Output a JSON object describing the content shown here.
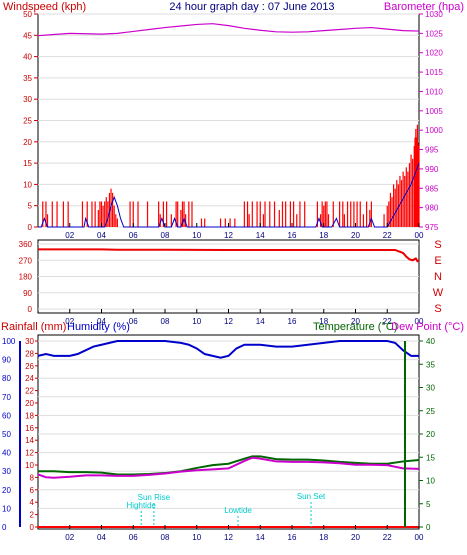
{
  "title": "24 hour graph day : 07 June 2013",
  "colors": {
    "wind": "#ff0000",
    "gust": "#0000cc",
    "baro": "#cc00cc",
    "dir": "#ff0000",
    "rain": "#ff0000",
    "humidity": "#0000cc",
    "temp": "#006600",
    "dew": "#cc00cc",
    "tide": "#00cccc",
    "frame": "#000000",
    "grid": "#dddddd",
    "bg": "#ffffff"
  },
  "chart_data": [
    {
      "type": "bar",
      "name": "wind-baro",
      "left_label": "Windspeed (kph)",
      "right_label": "Barometer (hpa)",
      "x_ticks": [
        "02",
        "04",
        "06",
        "08",
        "10",
        "12",
        "14",
        "16",
        "18",
        "20",
        "22",
        "00"
      ],
      "x_range_h": [
        0,
        24
      ],
      "y_left": {
        "min": 0,
        "max": 50,
        "step": 5
      },
      "y_right": {
        "min": 975,
        "max": 1030,
        "step": 5
      },
      "wind_speed_bars": [
        [
          0.3,
          6
        ],
        [
          0.5,
          6
        ],
        [
          0.6,
          3
        ],
        [
          0.9,
          6
        ],
        [
          1.2,
          6
        ],
        [
          1.6,
          6
        ],
        [
          1.9,
          6
        ],
        [
          2.8,
          6
        ],
        [
          3.1,
          6
        ],
        [
          3.4,
          6
        ],
        [
          3.6,
          6
        ],
        [
          3.8,
          4
        ],
        [
          3.9,
          6
        ],
        [
          4.0,
          6
        ],
        [
          4.1,
          5
        ],
        [
          4.2,
          6
        ],
        [
          4.3,
          7
        ],
        [
          4.4,
          6
        ],
        [
          4.5,
          8
        ],
        [
          4.6,
          9
        ],
        [
          4.7,
          8
        ],
        [
          4.8,
          5
        ],
        [
          4.9,
          3
        ],
        [
          5.0,
          2
        ],
        [
          5.8,
          6
        ],
        [
          6.0,
          6
        ],
        [
          6.3,
          6
        ],
        [
          6.9,
          6
        ],
        [
          7.6,
          6
        ],
        [
          7.7,
          3
        ],
        [
          7.9,
          6
        ],
        [
          8.1,
          6
        ],
        [
          8.4,
          3
        ],
        [
          8.7,
          6
        ],
        [
          8.8,
          6
        ],
        [
          9.0,
          4
        ],
        [
          9.1,
          6
        ],
        [
          9.2,
          6
        ],
        [
          9.3,
          3
        ],
        [
          9.5,
          6
        ],
        [
          9.7,
          6
        ],
        [
          10.3,
          2
        ],
        [
          10.5,
          2
        ],
        [
          11.5,
          2
        ],
        [
          11.8,
          2
        ],
        [
          12.1,
          2
        ],
        [
          12.4,
          2
        ],
        [
          13.0,
          6
        ],
        [
          13.2,
          6
        ],
        [
          13.3,
          3
        ],
        [
          13.5,
          6
        ],
        [
          13.8,
          6
        ],
        [
          14.0,
          6
        ],
        [
          14.2,
          3
        ],
        [
          14.3,
          6
        ],
        [
          14.6,
          6
        ],
        [
          14.9,
          6
        ],
        [
          15.2,
          4
        ],
        [
          15.4,
          6
        ],
        [
          15.6,
          6
        ],
        [
          15.9,
          6
        ],
        [
          16.1,
          6
        ],
        [
          16.3,
          3
        ],
        [
          16.5,
          6
        ],
        [
          16.8,
          6
        ],
        [
          17.6,
          6
        ],
        [
          17.8,
          3
        ],
        [
          17.9,
          6
        ],
        [
          18.0,
          5
        ],
        [
          18.1,
          6
        ],
        [
          18.2,
          6
        ],
        [
          18.3,
          3
        ],
        [
          18.6,
          6
        ],
        [
          19.0,
          6
        ],
        [
          19.2,
          6
        ],
        [
          19.3,
          3
        ],
        [
          19.5,
          6
        ],
        [
          19.7,
          6
        ],
        [
          19.9,
          6
        ],
        [
          20.1,
          6
        ],
        [
          20.3,
          6
        ],
        [
          20.5,
          3
        ],
        [
          20.7,
          6
        ],
        [
          20.9,
          4
        ],
        [
          21.0,
          6
        ],
        [
          21.8,
          3
        ],
        [
          22.0,
          5
        ],
        [
          22.1,
          6
        ],
        [
          22.2,
          8
        ],
        [
          22.3,
          7
        ],
        [
          22.4,
          10
        ],
        [
          22.5,
          9
        ],
        [
          22.6,
          11
        ],
        [
          22.7,
          10
        ],
        [
          22.8,
          12
        ],
        [
          22.9,
          11
        ],
        [
          23.0,
          13
        ],
        [
          23.1,
          12
        ],
        [
          23.2,
          14
        ],
        [
          23.3,
          13
        ],
        [
          23.4,
          15
        ],
        [
          23.5,
          17
        ],
        [
          23.6,
          16
        ],
        [
          23.7,
          19
        ],
        [
          23.75,
          21
        ],
        [
          23.8,
          23
        ],
        [
          23.85,
          21
        ],
        [
          23.9,
          24
        ],
        [
          23.95,
          20
        ],
        [
          24.0,
          19
        ]
      ],
      "gust_line": [
        [
          0,
          0
        ],
        [
          0.2,
          0
        ],
        [
          0.4,
          2
        ],
        [
          0.6,
          0
        ],
        [
          2.9,
          0
        ],
        [
          3.0,
          2
        ],
        [
          3.2,
          0
        ],
        [
          4.2,
          0
        ],
        [
          4.4,
          2
        ],
        [
          4.6,
          5
        ],
        [
          4.8,
          7
        ],
        [
          5.0,
          5
        ],
        [
          5.2,
          2
        ],
        [
          5.4,
          0
        ],
        [
          7.6,
          0
        ],
        [
          7.8,
          2
        ],
        [
          8.0,
          0
        ],
        [
          8.4,
          0
        ],
        [
          8.6,
          2
        ],
        [
          8.8,
          0
        ],
        [
          9.0,
          0
        ],
        [
          9.2,
          2
        ],
        [
          9.4,
          0
        ],
        [
          17.5,
          0
        ],
        [
          17.7,
          2
        ],
        [
          17.9,
          0
        ],
        [
          18.5,
          0
        ],
        [
          18.8,
          2
        ],
        [
          19.0,
          0
        ],
        [
          20.8,
          0
        ],
        [
          21.0,
          2
        ],
        [
          21.2,
          0
        ],
        [
          22.0,
          0
        ],
        [
          22.3,
          2
        ],
        [
          22.6,
          4
        ],
        [
          22.9,
          6
        ],
        [
          23.2,
          8
        ],
        [
          23.5,
          10
        ],
        [
          23.8,
          13
        ],
        [
          24.0,
          15
        ]
      ],
      "barometer": [
        [
          0,
          1024.4
        ],
        [
          1,
          1024.7
        ],
        [
          2,
          1025.0
        ],
        [
          3,
          1024.9
        ],
        [
          4,
          1024.8
        ],
        [
          5,
          1025.0
        ],
        [
          6,
          1025.5
        ],
        [
          7,
          1026.0
        ],
        [
          8,
          1026.5
        ],
        [
          9,
          1026.9
        ],
        [
          10,
          1027.3
        ],
        [
          11,
          1027.5
        ],
        [
          12,
          1027.0
        ],
        [
          13,
          1026.3
        ],
        [
          14,
          1025.8
        ],
        [
          15,
          1025.4
        ],
        [
          16,
          1025.3
        ],
        [
          17,
          1025.4
        ],
        [
          18,
          1025.7
        ],
        [
          19,
          1026.0
        ],
        [
          20,
          1026.3
        ],
        [
          21,
          1026.5
        ],
        [
          22,
          1026.1
        ],
        [
          23,
          1025.7
        ],
        [
          24,
          1025.6
        ]
      ]
    },
    {
      "type": "line",
      "name": "wind-direction",
      "x_ticks": [
        "02",
        "04",
        "06",
        "08",
        "10",
        "12",
        "14",
        "16",
        "18",
        "20",
        "22",
        "00"
      ],
      "x_range_h": [
        0,
        24
      ],
      "y_left": {
        "min": 0,
        "max": 360,
        "step": 90
      },
      "compass": [
        "S",
        "E",
        "N",
        "W",
        "S"
      ],
      "direction": [
        [
          0,
          330
        ],
        [
          2,
          330
        ],
        [
          4,
          330
        ],
        [
          5,
          328
        ],
        [
          8,
          328
        ],
        [
          12,
          327
        ],
        [
          16,
          327
        ],
        [
          20,
          327
        ],
        [
          22.5,
          327
        ],
        [
          23.0,
          310
        ],
        [
          23.2,
          290
        ],
        [
          23.4,
          275
        ],
        [
          23.6,
          270
        ],
        [
          23.8,
          280
        ],
        [
          23.9,
          265
        ],
        [
          24,
          270
        ]
      ]
    },
    {
      "type": "line",
      "name": "rain-humidity-temp",
      "labels": {
        "rain": "Rainfall (mm)",
        "humidity": "Humidity (%)",
        "temp": "Temperature (°C)",
        "dew": "Dew Point (°C)"
      },
      "x_ticks": [
        "02",
        "04",
        "06",
        "08",
        "10",
        "12",
        "14",
        "16",
        "18",
        "20",
        "22",
        "00"
      ],
      "x_range_h": [
        0,
        24
      ],
      "y_humidity": {
        "min": 0,
        "max": 100,
        "step": 10
      },
      "y_rain": {
        "min": 0,
        "max": 30,
        "step": 2
      },
      "y_temp": {
        "min": 0,
        "max": 40,
        "step": 5
      },
      "rain_total_mm": 0,
      "humidity": [
        [
          0,
          92
        ],
        [
          0.5,
          93
        ],
        [
          1,
          92
        ],
        [
          2,
          92
        ],
        [
          2.5,
          93
        ],
        [
          3,
          95
        ],
        [
          3.5,
          97
        ],
        [
          4,
          98
        ],
        [
          4.5,
          99
        ],
        [
          5,
          100
        ],
        [
          6,
          100
        ],
        [
          7,
          100
        ],
        [
          8,
          100
        ],
        [
          9,
          99
        ],
        [
          9.5,
          98
        ],
        [
          10,
          96
        ],
        [
          10.5,
          93
        ],
        [
          11,
          92
        ],
        [
          11.5,
          91
        ],
        [
          12,
          92
        ],
        [
          12.5,
          96
        ],
        [
          13,
          98
        ],
        [
          14,
          98
        ],
        [
          15,
          97
        ],
        [
          16,
          97
        ],
        [
          17,
          98
        ],
        [
          18,
          99
        ],
        [
          19,
          100
        ],
        [
          20,
          100
        ],
        [
          21,
          100
        ],
        [
          22,
          100
        ],
        [
          22.5,
          99
        ],
        [
          23,
          95
        ],
        [
          23.5,
          92
        ],
        [
          24,
          92
        ]
      ],
      "temperature": [
        [
          0,
          12
        ],
        [
          1,
          12
        ],
        [
          2,
          11.8
        ],
        [
          3,
          11.8
        ],
        [
          4,
          11.7
        ],
        [
          5,
          11.3
        ],
        [
          6,
          11.3
        ],
        [
          7,
          11.4
        ],
        [
          8,
          11.6
        ],
        [
          9,
          12
        ],
        [
          10,
          12.7
        ],
        [
          11,
          13.3
        ],
        [
          12,
          13.6
        ],
        [
          13,
          14.7
        ],
        [
          13.5,
          15.2
        ],
        [
          14,
          15.2
        ],
        [
          15,
          14.6
        ],
        [
          16,
          14.5
        ],
        [
          17,
          14.5
        ],
        [
          18,
          14.3
        ],
        [
          19,
          14
        ],
        [
          20,
          13.8
        ],
        [
          21,
          13.6
        ],
        [
          22,
          13.6
        ],
        [
          23,
          14.1
        ],
        [
          24,
          14.4
        ]
      ],
      "dew_point": [
        [
          0,
          11.3
        ],
        [
          0.5,
          10.7
        ],
        [
          1,
          10.6
        ],
        [
          2,
          10.8
        ],
        [
          3,
          11.1
        ],
        [
          4,
          11.1
        ],
        [
          5,
          11.0
        ],
        [
          6,
          11.0
        ],
        [
          7,
          11.2
        ],
        [
          8,
          11.5
        ],
        [
          9,
          11.9
        ],
        [
          10,
          12.2
        ],
        [
          11,
          12.4
        ],
        [
          12,
          12.6
        ],
        [
          13,
          14.2
        ],
        [
          13.5,
          14.9
        ],
        [
          14,
          14.7
        ],
        [
          15,
          14.1
        ],
        [
          16,
          14.0
        ],
        [
          17,
          14.0
        ],
        [
          18,
          13.9
        ],
        [
          19,
          13.7
        ],
        [
          20,
          13.4
        ],
        [
          21,
          13.4
        ],
        [
          22,
          13.3
        ],
        [
          23,
          12.6
        ],
        [
          24,
          12.5
        ]
      ],
      "tide_events": [
        {
          "label": "Hightide",
          "hour": 6.5
        },
        {
          "label": "Sun Rise",
          "hour": 7.3
        },
        {
          "label": "Lowtide",
          "hour": 12.6
        },
        {
          "label": "Sun Set",
          "hour": 17.2
        }
      ]
    }
  ]
}
